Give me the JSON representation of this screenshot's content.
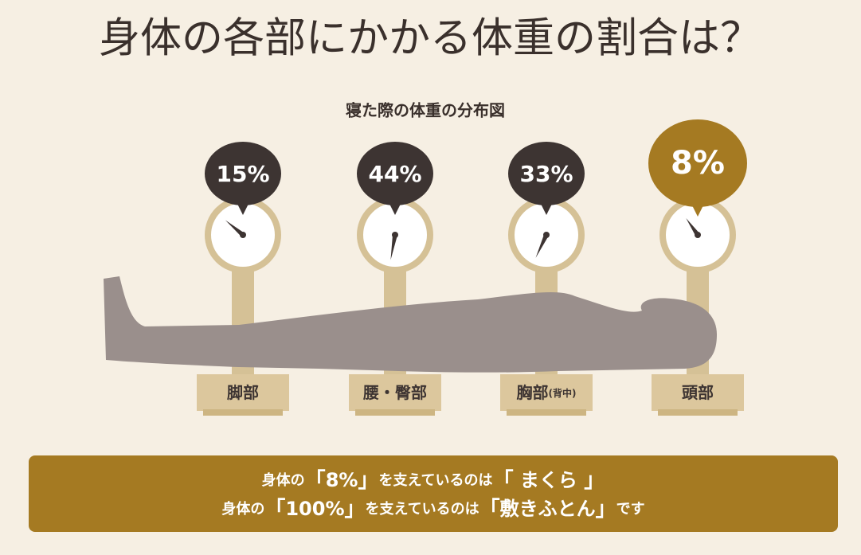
{
  "header": {
    "title": "身体の各部にかかる体重の割合は？",
    "subtitle": "寝た際の体重の分布図"
  },
  "scales": [
    {
      "percent": "15%",
      "label": "脚部"
    },
    {
      "percent": "44%",
      "label": "腰・臀部"
    },
    {
      "percent": "33%",
      "label": "胸部",
      "note": "(背中)"
    },
    {
      "percent": "8%",
      "label": "頭部"
    }
  ],
  "message": {
    "lines": [
      [
        "身体の",
        "「",
        "8%",
        "」",
        "を支えているのは",
        "「",
        " まくら ",
        "」"
      ],
      [
        "身体の",
        "「",
        "100%",
        "」",
        "を支えているのは",
        "「",
        "敷きふとん",
        "」",
        "です"
      ]
    ]
  }
}
